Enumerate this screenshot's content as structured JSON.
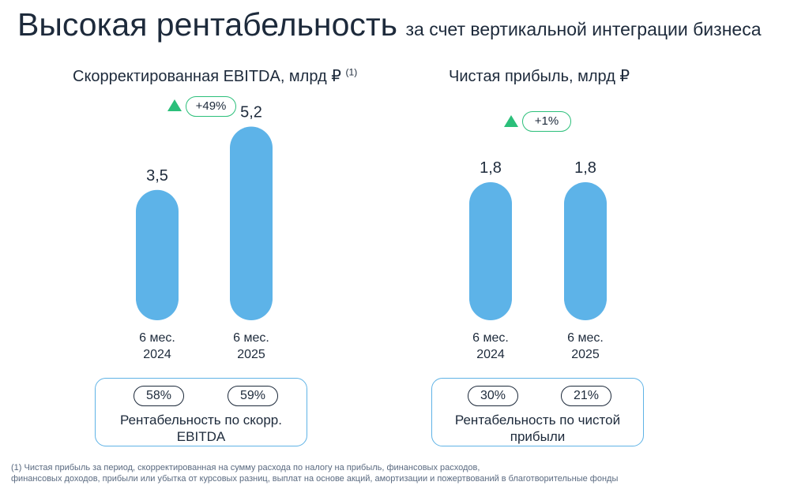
{
  "header": {
    "title": "Высокая рентабельность",
    "subtitle": "за счет вертикальной интеграции бизнеса"
  },
  "colors": {
    "bar": "#5db3e8",
    "growth": "#2bbf7a",
    "box_border": "#5fb3e6",
    "text": "#1d2a3b"
  },
  "chart_data": [
    {
      "type": "bar",
      "title": "Скорректированная EBITDA, млрд ₽",
      "title_note": "(1)",
      "categories": [
        "6 мес. 2024",
        "6 мес. 2025"
      ],
      "category_lines": [
        [
          "6 мес.",
          "2024"
        ],
        [
          "6 мес.",
          "2025"
        ]
      ],
      "values": [
        3.5,
        5.2
      ],
      "value_labels": [
        "3,5",
        "5,2"
      ],
      "growth": "+49%",
      "margin_values": [
        "58%",
        "59%"
      ],
      "margin_label": "Рентабельность по скорр. EBITDA",
      "margin_label_lines": [
        "Рентабельность по скорр.",
        "EBITDA"
      ]
    },
    {
      "type": "bar",
      "title": "Чистая прибыль, млрд ₽",
      "categories": [
        "6 мес. 2024",
        "6 мес. 2025"
      ],
      "category_lines": [
        [
          "6 мес.",
          "2024"
        ],
        [
          "6 мес.",
          "2025"
        ]
      ],
      "values": [
        1.8,
        1.8
      ],
      "value_labels": [
        "1,8",
        "1,8"
      ],
      "growth": "+1%",
      "margin_values": [
        "30%",
        "21%"
      ],
      "margin_label": "Рентабельность по чистой прибыли",
      "margin_label_lines": [
        "Рентабельность по чистой",
        "прибыли"
      ]
    }
  ],
  "footnote": {
    "line1": "(1) Чистая прибыль за период, скорректированная на сумму расхода по налогу на прибыль, финансовых расходов,",
    "line2": "финансовых доходов, прибыли или убытка от курсовых разниц, выплат на основе акций, амортизации и пожертвований в благотворительные фонды"
  }
}
